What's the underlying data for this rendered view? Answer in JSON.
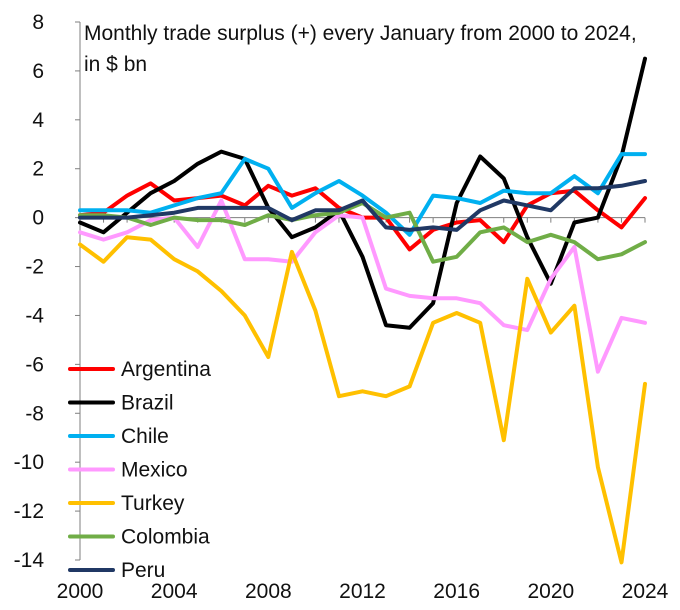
{
  "chart_data": {
    "type": "line",
    "title": "Monthly trade surplus (+)  every January from 2000 to 2024, in $ bn",
    "xlabel": "",
    "ylabel": "",
    "xlim": [
      2000,
      2024
    ],
    "ylim": [
      -14,
      8
    ],
    "x_ticks": [
      2000,
      2004,
      2008,
      2012,
      2016,
      2020,
      2024
    ],
    "y_ticks": [
      8,
      6,
      4,
      2,
      0,
      -2,
      -4,
      -6,
      -8,
      -10,
      -12,
      -14
    ],
    "grid": false,
    "legend_position": "bottom-left",
    "x": [
      2000,
      2001,
      2002,
      2003,
      2004,
      2005,
      2006,
      2007,
      2008,
      2009,
      2010,
      2011,
      2012,
      2013,
      2014,
      2015,
      2016,
      2017,
      2018,
      2019,
      2020,
      2021,
      2022,
      2023,
      2024
    ],
    "series": [
      {
        "name": "Argentina",
        "color": "#ff0000",
        "values": [
          0.1,
          0.2,
          0.9,
          1.4,
          0.7,
          0.8,
          0.9,
          0.5,
          1.3,
          0.9,
          1.2,
          0.4,
          0.0,
          0.0,
          -1.3,
          -0.5,
          -0.2,
          -0.1,
          -1.0,
          0.5,
          1.0,
          1.1,
          0.3,
          -0.4,
          0.8
        ]
      },
      {
        "name": "Brazil",
        "color": "#000000",
        "values": [
          -0.2,
          -0.6,
          0.2,
          1.0,
          1.5,
          2.2,
          2.7,
          2.4,
          0.4,
          -0.8,
          -0.4,
          0.3,
          -1.6,
          -4.4,
          -4.5,
          -3.5,
          0.6,
          2.5,
          1.6,
          -0.8,
          -2.7,
          -0.2,
          0.0,
          2.5,
          6.5
        ]
      },
      {
        "name": "Chile",
        "color": "#00b0f0",
        "values": [
          0.3,
          0.3,
          0.3,
          0.2,
          0.5,
          0.8,
          1.0,
          2.4,
          2.0,
          0.4,
          1.0,
          1.5,
          0.9,
          0.2,
          -0.7,
          0.9,
          0.8,
          0.6,
          1.1,
          1.0,
          1.0,
          1.7,
          1.0,
          2.6,
          2.6
        ]
      },
      {
        "name": "Mexico",
        "color": "#ff99ff",
        "values": [
          -0.6,
          -0.9,
          -0.6,
          -0.1,
          0.0,
          -1.2,
          0.7,
          -1.7,
          -1.7,
          -1.8,
          -0.6,
          0.1,
          0.0,
          -2.9,
          -3.2,
          -3.3,
          -3.3,
          -3.5,
          -4.4,
          -4.6,
          -2.5,
          -1.2,
          -6.3,
          -4.1,
          -4.3
        ]
      },
      {
        "name": "Turkey",
        "color": "#ffc000",
        "values": [
          -1.1,
          -1.8,
          -0.8,
          -0.9,
          -1.7,
          -2.2,
          -3.0,
          -4.0,
          -5.7,
          -1.4,
          -3.8,
          -7.3,
          -7.1,
          -7.3,
          -6.9,
          -4.3,
          -3.9,
          -4.3,
          -9.1,
          -2.5,
          -4.7,
          -3.6,
          -10.2,
          -14.1,
          -6.8
        ]
      },
      {
        "name": "Colombia",
        "color": "#70ad47",
        "values": [
          0.1,
          0.1,
          0.0,
          -0.3,
          0.0,
          -0.1,
          -0.1,
          -0.3,
          0.1,
          -0.1,
          0.1,
          0.2,
          0.6,
          0.0,
          0.2,
          -1.8,
          -1.6,
          -0.6,
          -0.4,
          -1.0,
          -0.7,
          -1.0,
          -1.7,
          -1.5,
          -1.0
        ]
      },
      {
        "name": "Peru",
        "color": "#203864",
        "values": [
          0.0,
          0.0,
          0.0,
          0.1,
          0.2,
          0.4,
          0.4,
          0.4,
          0.4,
          -0.1,
          0.3,
          0.3,
          0.7,
          -0.4,
          -0.5,
          -0.4,
          -0.5,
          0.3,
          0.7,
          0.5,
          0.3,
          1.2,
          1.2,
          1.3,
          1.5
        ]
      }
    ]
  }
}
